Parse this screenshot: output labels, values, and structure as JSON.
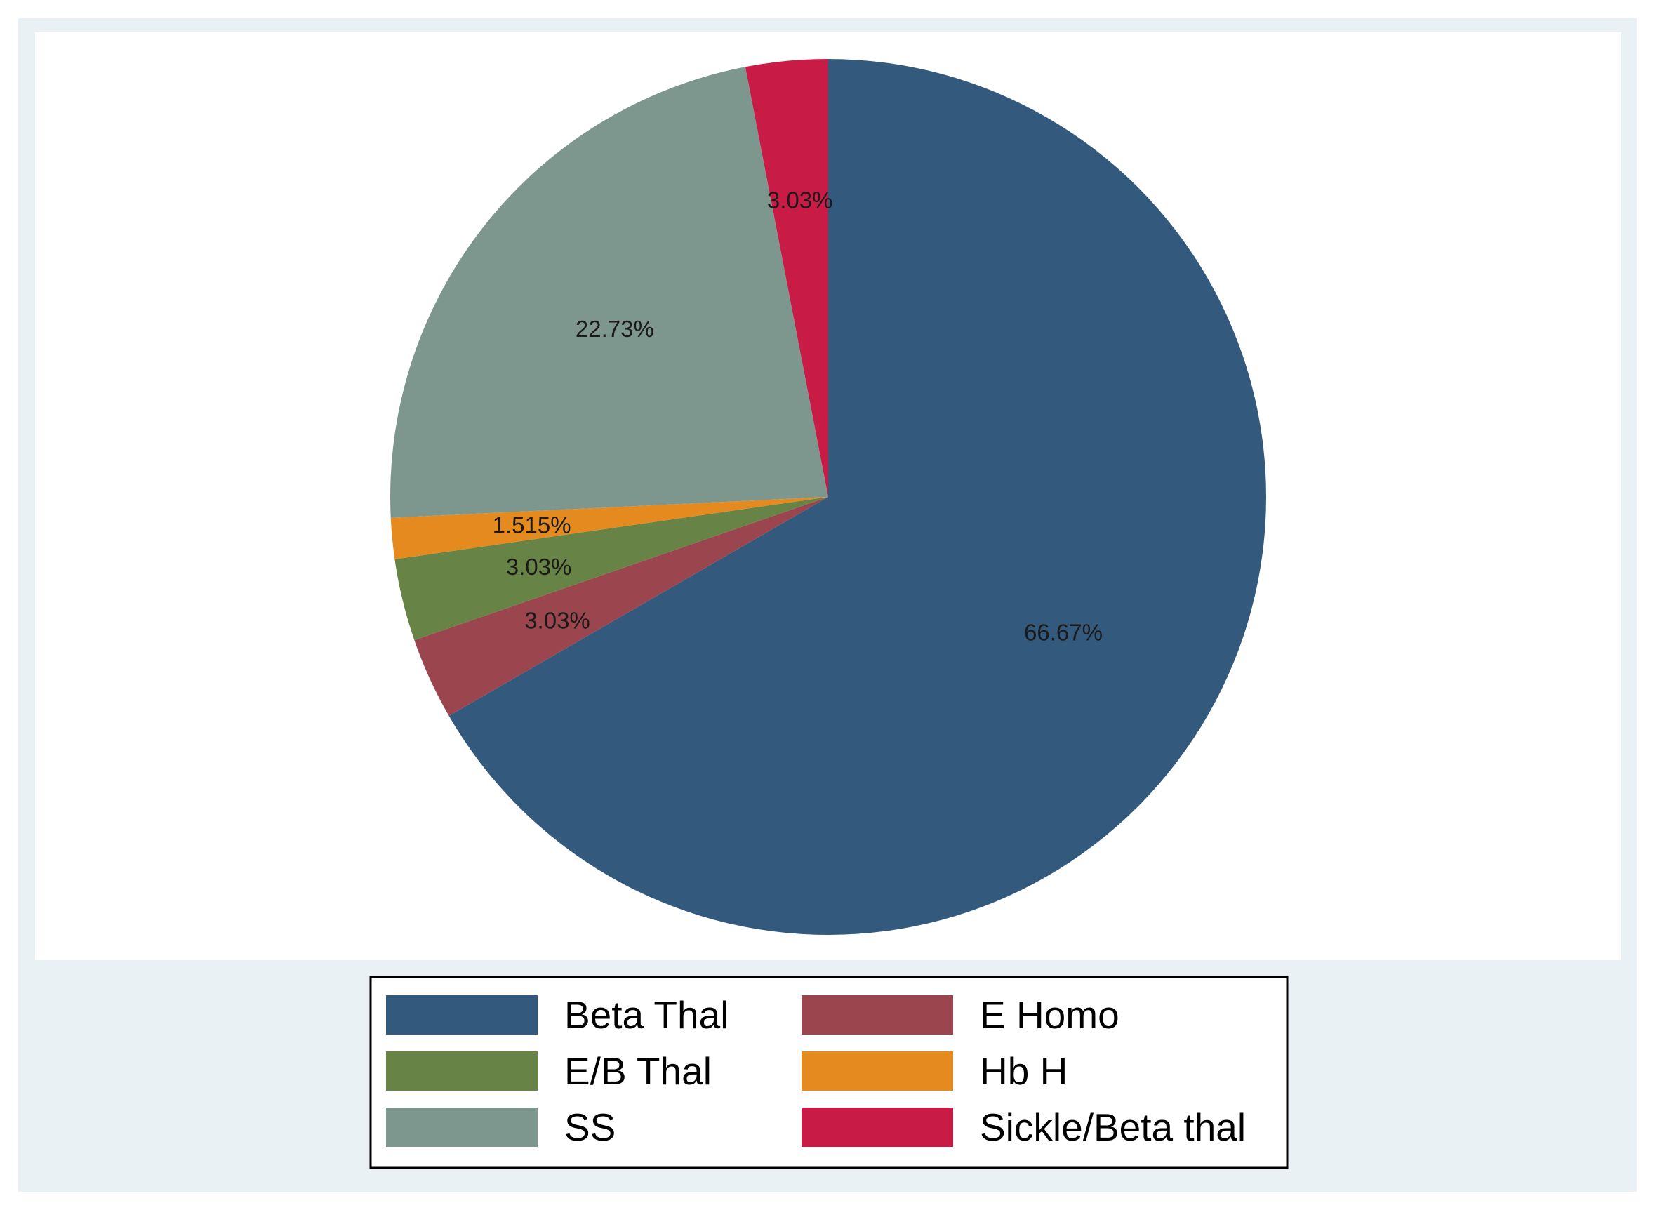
{
  "chart_data": {
    "type": "pie",
    "title": "",
    "start_angle_deg": 90,
    "direction": "clockwise",
    "slices": [
      {
        "label": "Beta Thal",
        "value": 66.67,
        "value_label": "66.67%",
        "color": "#335a7c"
      },
      {
        "label": "E Homo",
        "value": 3.03,
        "value_label": "3.03%",
        "color": "#9b454e"
      },
      {
        "label": "E/B Thal",
        "value": 3.03,
        "value_label": "3.03%",
        "color": "#688346"
      },
      {
        "label": "Hb H",
        "value": 1.515,
        "value_label": "1.515%",
        "color": "#e48a1e"
      },
      {
        "label": "SS",
        "value": 22.73,
        "value_label": "22.73%",
        "color": "#7e978e"
      },
      {
        "label": "Sickle/Beta thal",
        "value": 3.03,
        "value_label": "3.03%",
        "color": "#c81b45"
      }
    ],
    "legend": {
      "position": "bottom",
      "columns": 2
    }
  },
  "colors": {
    "outer_background": "#eaf1f4",
    "plot_background": "#ffffff",
    "legend_border": "#000000"
  }
}
